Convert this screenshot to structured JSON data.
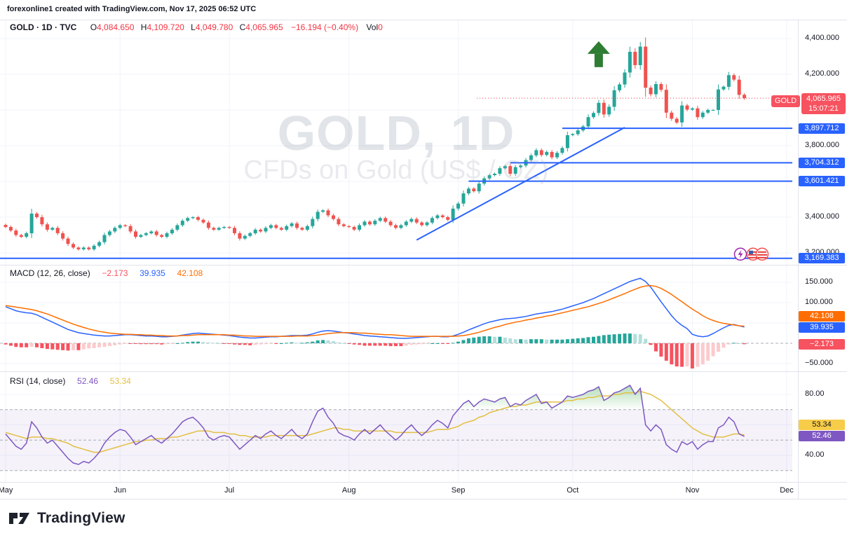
{
  "header": {
    "text": "forexonline1 created with TradingView.com, Nov 17, 2025 06:52 UTC"
  },
  "legend": {
    "title": "GOLD · 1D · TVC",
    "o_label": "O",
    "o": "4,084.650",
    "h_label": "H",
    "h": "4,109.720",
    "l_label": "L",
    "l": "4,049.780",
    "c_label": "C",
    "c": "4,065.965",
    "change": "−16.194 (−0.40%)",
    "vol_label": "Vol",
    "vol": "0"
  },
  "watermark": {
    "title": "GOLD, 1D",
    "subtitle": "CFDs on Gold (US$ / OZ)"
  },
  "price_axis": {
    "ticks": [
      {
        "label": "4,400.000",
        "value": 4400
      },
      {
        "label": "4,200.000",
        "value": 4200
      },
      {
        "label": "3,800.000",
        "value": 3800
      },
      {
        "label": "3,400.000",
        "value": 3400
      },
      {
        "label": "3,200.000",
        "value": 3200
      }
    ],
    "line_badges": [
      {
        "label": "3,897.712",
        "value": 3897.712
      },
      {
        "label": "3,704.312",
        "value": 3704.312
      },
      {
        "label": "3,601.421",
        "value": 3601.421
      },
      {
        "label": "3,169.383",
        "value": 3169.383
      }
    ],
    "current_badge": {
      "symbol": "GOLD",
      "price": "4,065.965",
      "countdown": "15:07:21"
    }
  },
  "macd_pane": {
    "legend_title": "MACD (12, 26, close)",
    "hist_value": "−2.173",
    "macd_value": "39.935",
    "signal_value": "42.108",
    "ticks": [
      {
        "label": "150.000",
        "value": 150
      },
      {
        "label": "100.000",
        "value": 100
      },
      {
        "label": "−50.000",
        "value": -50
      }
    ]
  },
  "rsi_pane": {
    "legend_title": "RSI (14, close)",
    "rsi_value": "52.46",
    "ma_value": "53.34",
    "ticks": [
      {
        "label": "80.00",
        "value": 80
      },
      {
        "label": "40.00",
        "value": 40
      }
    ]
  },
  "footer": {
    "brand": "TradingView"
  },
  "colors": {
    "up": "#26A69A",
    "down": "#EF5350",
    "macd_line": "#2962FF",
    "signal_line": "#FF6D00",
    "hist_pos": "#26A69A",
    "hist_pos_weak": "#B2DFDB",
    "hist_neg": "#F7525F",
    "hist_neg_weak": "#FCCBCD",
    "rsi_line": "#7E57C2",
    "rsi_ma": "#E2C044",
    "level_line": "#2962FF",
    "accent_red": "#F23645",
    "grid": "#F0F3FA",
    "separator": "#E0E3EB",
    "arrow_green": "#2E7D32",
    "dashed_gray": "#A8ABB5",
    "rsi_band_fill": "rgba(126,87,194,0.08)",
    "rsi_over_fill": "#4CAF50"
  },
  "chart_data": {
    "type": "candlestick",
    "symbol": "GOLD",
    "timeframe": "1D",
    "exchange": "TVC",
    "current_ohlc": {
      "open": 4084.65,
      "high": 4109.72,
      "low": 4049.78,
      "close": 4065.965,
      "change": -16.194,
      "change_pct": -0.4
    },
    "price_ylim": [
      3140,
      4480
    ],
    "closes": [
      3345,
      3325,
      3300,
      3290,
      3310,
      3420,
      3400,
      3360,
      3330,
      3340,
      3310,
      3280,
      3250,
      3230,
      3220,
      3230,
      3220,
      3240,
      3260,
      3300,
      3320,
      3340,
      3355,
      3350,
      3320,
      3290,
      3300,
      3310,
      3320,
      3300,
      3290,
      3310,
      3330,
      3355,
      3380,
      3395,
      3400,
      3385,
      3370,
      3340,
      3330,
      3340,
      3345,
      3340,
      3310,
      3280,
      3295,
      3310,
      3330,
      3320,
      3340,
      3355,
      3340,
      3330,
      3350,
      3365,
      3340,
      3330,
      3350,
      3390,
      3430,
      3438,
      3410,
      3390,
      3360,
      3350,
      3345,
      3330,
      3355,
      3375,
      3360,
      3380,
      3395,
      3375,
      3355,
      3340,
      3355,
      3375,
      3390,
      3370,
      3355,
      3370,
      3395,
      3410,
      3400,
      3385,
      3448,
      3476,
      3533,
      3560,
      3545,
      3588,
      3617,
      3635,
      3643,
      3674,
      3686,
      3643,
      3680,
      3689,
      3720,
      3746,
      3775,
      3748,
      3765,
      3735,
      3760,
      3787,
      3859,
      3865,
      3886,
      3908,
      3960,
      3983,
      4040,
      3975,
      4018,
      4110,
      4143,
      4210,
      4326,
      4251,
      4355,
      4125,
      4088,
      4145,
      4113,
      3985,
      3951,
      3930,
      4025,
      4002,
      4009,
      3960,
      3985,
      4000,
      4000,
      4115,
      4130,
      4195,
      4170,
      4085,
      4066
    ],
    "months": [
      {
        "label": "May",
        "index": 0
      },
      {
        "label": "Jun",
        "index": 22
      },
      {
        "label": "Jul",
        "index": 43
      },
      {
        "label": "Aug",
        "index": 66
      },
      {
        "label": "Sep",
        "index": 87
      },
      {
        "label": "Oct",
        "index": 109
      },
      {
        "label": "Nov",
        "index": 132
      },
      {
        "label": "Dec",
        "index": 152
      }
    ],
    "overlays": {
      "hlines": [
        {
          "price": 3897.712,
          "start_index": 107
        },
        {
          "price": 3704.312,
          "start_index": 97
        },
        {
          "price": 3601.421,
          "start_index": 89
        },
        {
          "price": 3169.383,
          "start_index": null
        }
      ],
      "trendline": {
        "from_index": 79,
        "from_price": 3272,
        "to_index": 119,
        "to_price": 3902
      },
      "arrow_up": {
        "index": 114,
        "tip_price": 4385
      },
      "current_price_line": 4065.965,
      "event_icons": [
        "lightning-event",
        "us-flag-event",
        "us-flag-event-2"
      ]
    },
    "indicators": {
      "macd": {
        "params": [
          12,
          26,
          "close"
        ],
        "ylim": [
          -75,
          185
        ],
        "macd": [
          90,
          85,
          80,
          77,
          75,
          74,
          70,
          64,
          58,
          52,
          46,
          40,
          34,
          30,
          26,
          24,
          22,
          20,
          19,
          18,
          18,
          19,
          20,
          21,
          21,
          20,
          19,
          18,
          18,
          17,
          16,
          16,
          17,
          18,
          20,
          22,
          24,
          25,
          24,
          23,
          22,
          21,
          20,
          19,
          17,
          15,
          14,
          13,
          13,
          14,
          15,
          16,
          16,
          17,
          18,
          19,
          19,
          19,
          20,
          23,
          27,
          30,
          31,
          30,
          28,
          26,
          25,
          23,
          21,
          19,
          18,
          17,
          16,
          15,
          14,
          13,
          12,
          12,
          13,
          14,
          15,
          16,
          17,
          17,
          16,
          16,
          18,
          22,
          27,
          33,
          38,
          43,
          48,
          52,
          55,
          58,
          60,
          61,
          62,
          64,
          66,
          69,
          72,
          74,
          76,
          78,
          81,
          84,
          88,
          92,
          96,
          100,
          105,
          110,
          116,
          122,
          128,
          134,
          140,
          146,
          152,
          156,
          160,
          152,
          138,
          120,
          102,
          85,
          68,
          54,
          44,
          36,
          22,
          18,
          16,
          18,
          24,
          31,
          38,
          44,
          46,
          43,
          39.935
        ],
        "signal": [
          93,
          91,
          89,
          87,
          85,
          83,
          80,
          76,
          72,
          67,
          62,
          57,
          52,
          47,
          43,
          39,
          35,
          32,
          29,
          27,
          25,
          24,
          23,
          22,
          22,
          21,
          21,
          20,
          20,
          19,
          19,
          18,
          18,
          18,
          19,
          19,
          20,
          21,
          21,
          21,
          21,
          21,
          21,
          20,
          20,
          19,
          18,
          18,
          17,
          17,
          17,
          17,
          17,
          17,
          17,
          17,
          18,
          18,
          18,
          19,
          20,
          22,
          24,
          25,
          26,
          26,
          26,
          26,
          25,
          25,
          24,
          23,
          22,
          21,
          21,
          20,
          19,
          18,
          17,
          17,
          17,
          17,
          17,
          17,
          17,
          17,
          17,
          18,
          19,
          21,
          24,
          27,
          31,
          35,
          39,
          42,
          46,
          49,
          52,
          54,
          57,
          59,
          62,
          64,
          67,
          69,
          72,
          75,
          78,
          81,
          84,
          87,
          90,
          94,
          98,
          102,
          107,
          112,
          117,
          122,
          128,
          133,
          138,
          141,
          142,
          140,
          135,
          128,
          120,
          111,
          102,
          93,
          84,
          76,
          68,
          61,
          56,
          52,
          49,
          47,
          45,
          43,
          42.108
        ],
        "hist": [
          -3,
          -6,
          -9,
          -10,
          -10,
          -9,
          -10,
          -12,
          -14,
          -15,
          -16,
          -17,
          -18,
          -17,
          -17,
          -15,
          -13,
          -12,
          -10,
          -9,
          -7,
          -5,
          -3,
          -1,
          -1,
          -1,
          -2,
          -2,
          -2,
          -2,
          -3,
          -2,
          -1,
          0,
          1,
          3,
          4,
          4,
          3,
          2,
          1,
          0,
          -1,
          -1,
          -3,
          -4,
          -4,
          -5,
          -4,
          -3,
          -2,
          -1,
          -1,
          0,
          1,
          2,
          1,
          1,
          2,
          4,
          7,
          8,
          7,
          5,
          2,
          0,
          -1,
          -3,
          -4,
          -6,
          -6,
          -6,
          -6,
          -6,
          -7,
          -7,
          -7,
          -6,
          -4,
          -3,
          -2,
          -1,
          0,
          0,
          -1,
          -1,
          1,
          4,
          8,
          12,
          14,
          16,
          17,
          17,
          16,
          16,
          14,
          12,
          10,
          10,
          9,
          10,
          10,
          10,
          9,
          9,
          9,
          9,
          10,
          11,
          12,
          13,
          15,
          16,
          18,
          20,
          21,
          22,
          23,
          24,
          24,
          23,
          22,
          11,
          -4,
          -20,
          -33,
          -43,
          -52,
          -57,
          -58,
          -57,
          -62,
          -58,
          -52,
          -43,
          -32,
          -21,
          -11,
          -3,
          1,
          0,
          -2.173
        ]
      },
      "rsi": {
        "params": [
          14,
          "close"
        ],
        "levels": [
          70,
          50,
          30
        ],
        "ylim": [
          12,
          92
        ],
        "rsi": [
          54,
          50,
          46,
          44,
          48,
          62,
          58,
          52,
          48,
          50,
          46,
          42,
          38,
          35,
          34,
          36,
          35,
          38,
          42,
          48,
          52,
          55,
          57,
          56,
          52,
          47,
          49,
          51,
          53,
          50,
          48,
          51,
          54,
          58,
          62,
          64,
          65,
          62,
          58,
          52,
          50,
          52,
          53,
          52,
          48,
          44,
          47,
          50,
          53,
          51,
          54,
          56,
          53,
          51,
          54,
          57,
          53,
          51,
          54,
          62,
          69,
          71,
          65,
          61,
          55,
          53,
          52,
          50,
          54,
          57,
          54,
          57,
          60,
          56,
          53,
          50,
          53,
          57,
          60,
          56,
          53,
          56,
          60,
          63,
          61,
          58,
          66,
          70,
          74,
          76,
          72,
          75,
          77,
          76,
          75,
          77,
          78,
          72,
          74,
          73,
          76,
          78,
          80,
          74,
          75,
          71,
          73,
          75,
          79,
          78,
          79,
          80,
          82,
          83,
          85,
          76,
          78,
          81,
          82,
          84,
          86,
          80,
          84,
          60,
          56,
          60,
          57,
          47,
          44,
          42,
          49,
          47,
          49,
          44,
          47,
          49,
          49,
          58,
          60,
          65,
          62,
          54,
          52.46
        ],
        "ma": [
          55,
          54,
          53,
          52,
          51,
          52,
          52,
          52,
          51,
          51,
          50,
          49,
          48,
          46,
          45,
          44,
          43,
          42,
          42,
          43,
          44,
          45,
          46,
          47,
          48,
          49,
          49,
          50,
          50,
          51,
          51,
          51,
          52,
          52,
          53,
          54,
          55,
          56,
          56,
          56,
          55,
          55,
          55,
          54,
          54,
          53,
          53,
          52,
          52,
          52,
          52,
          53,
          53,
          53,
          53,
          53,
          53,
          53,
          53,
          54,
          55,
          56,
          57,
          58,
          58,
          57,
          57,
          56,
          56,
          56,
          56,
          56,
          56,
          56,
          56,
          55,
          55,
          55,
          55,
          55,
          55,
          55,
          56,
          57,
          57,
          57,
          58,
          59,
          61,
          62,
          63,
          65,
          66,
          68,
          69,
          70,
          71,
          72,
          72,
          73,
          73,
          74,
          75,
          75,
          75,
          75,
          75,
          75,
          76,
          76,
          77,
          77,
          78,
          78,
          79,
          79,
          79,
          80,
          80,
          81,
          81,
          81,
          82,
          81,
          80,
          78,
          76,
          73,
          70,
          67,
          64,
          61,
          58,
          56,
          54,
          53,
          52,
          52,
          52,
          53,
          54,
          54,
          53.34
        ]
      }
    }
  }
}
